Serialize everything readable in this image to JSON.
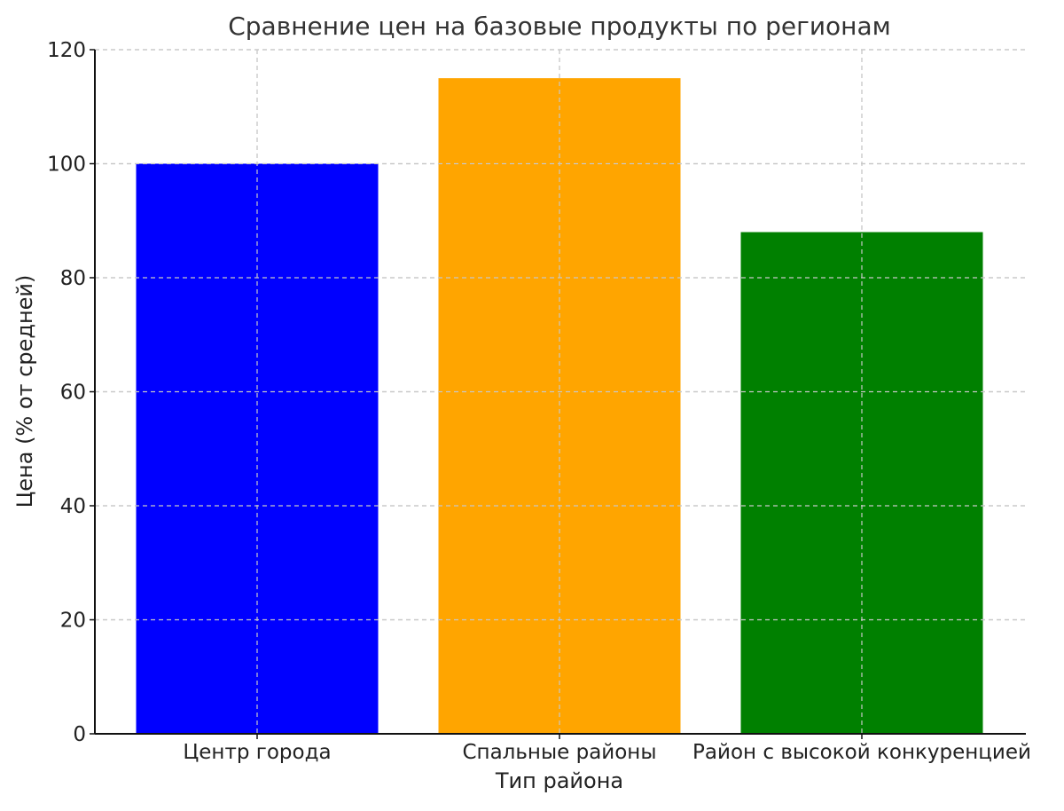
{
  "chart_data": {
    "type": "bar",
    "title": "Сравнение цен на базовые продукты по регионам",
    "xlabel": "Тип района",
    "ylabel": "Цена (% от средней)",
    "categories": [
      "Центр города",
      "Спальные районы",
      "Район с высокой конкуренцией"
    ],
    "values": [
      100,
      115,
      88
    ],
    "colors": [
      "#0000ff",
      "#ffa500",
      "#008000"
    ],
    "ylim": [
      0,
      120
    ],
    "yticks": [
      0,
      20,
      40,
      60,
      80,
      100,
      120
    ],
    "grid": true
  }
}
